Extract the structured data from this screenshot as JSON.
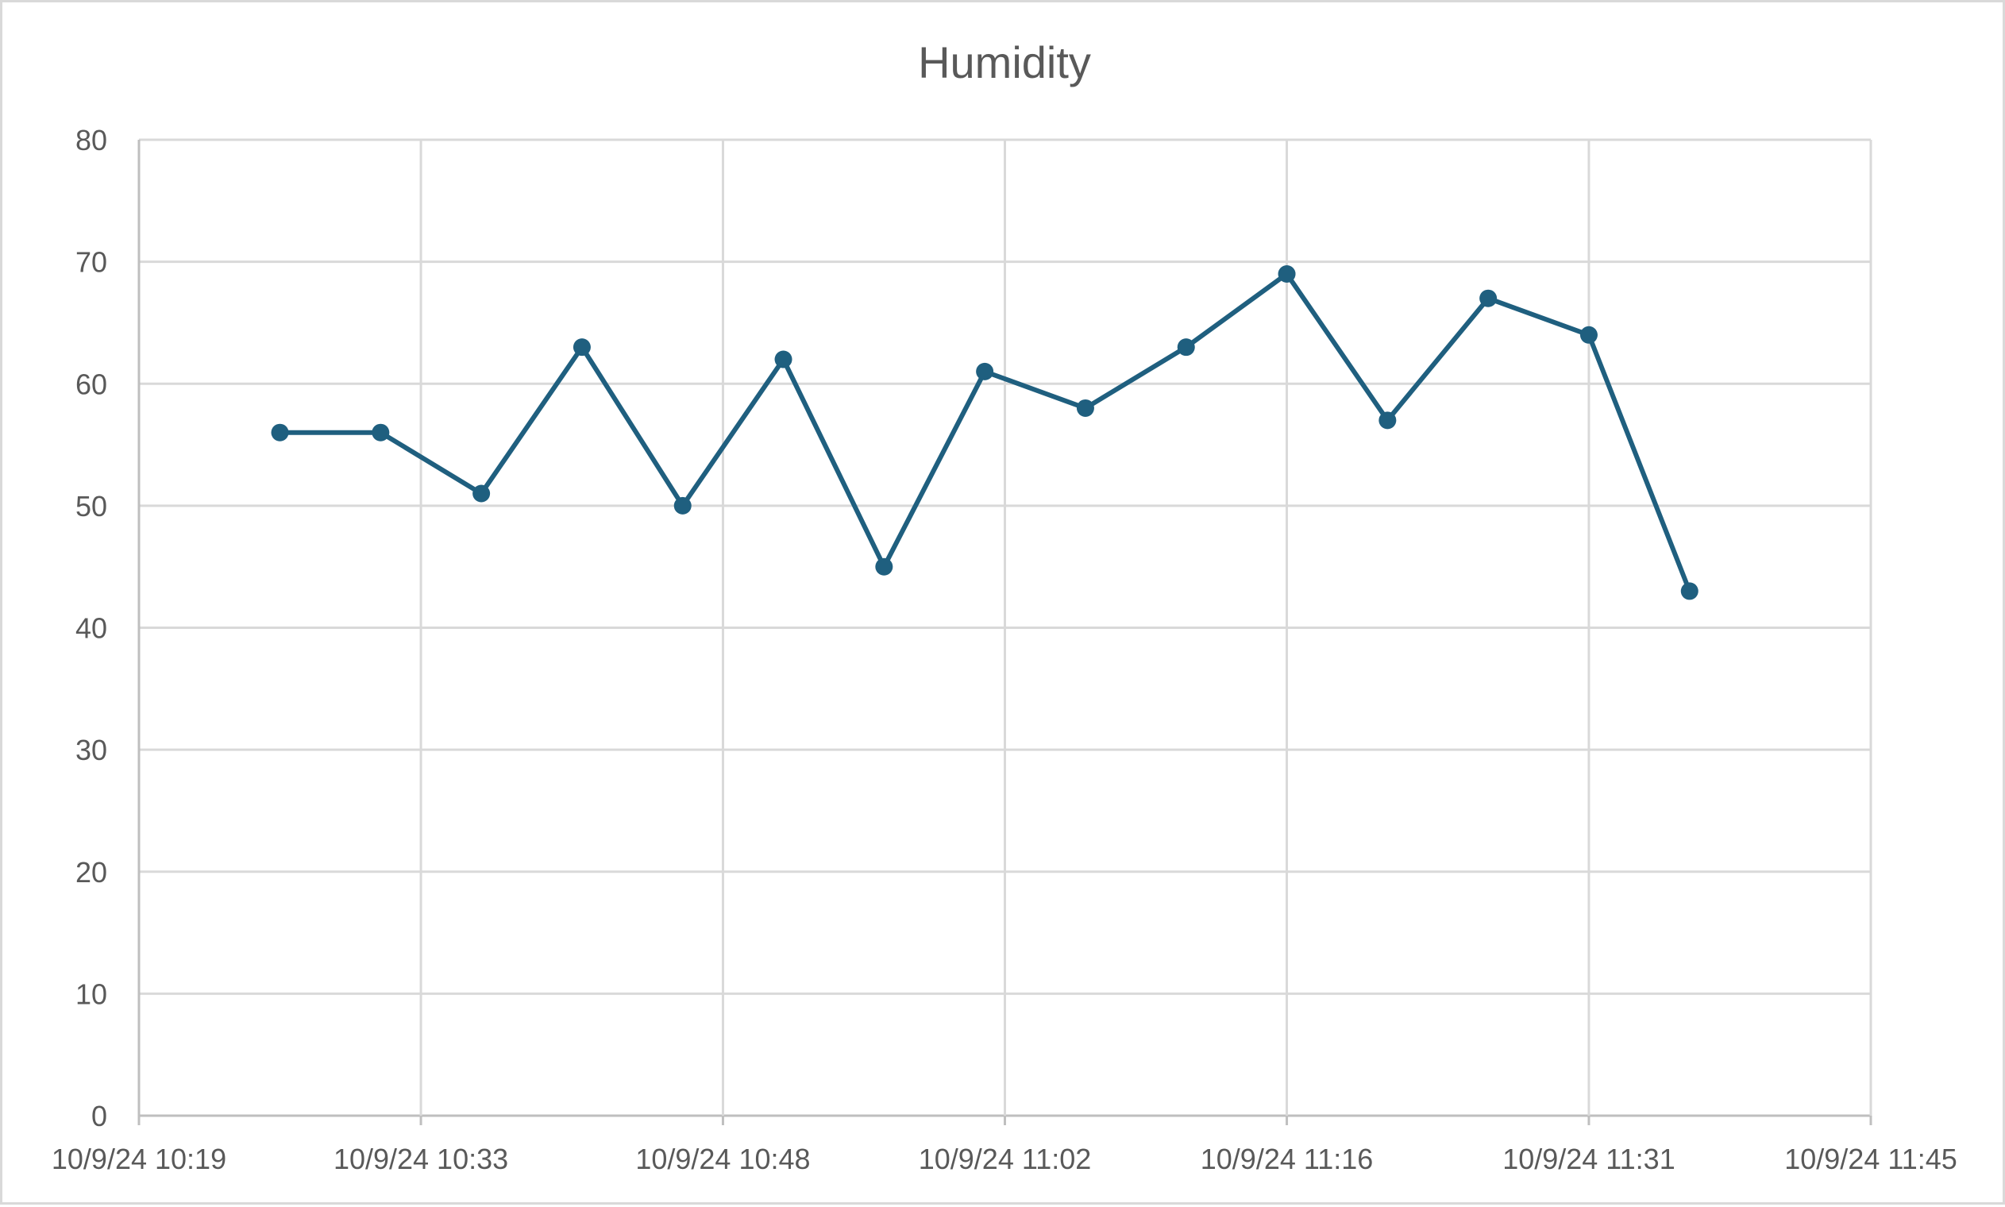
{
  "chart_data": {
    "type": "line",
    "title": "Humidity",
    "xlabel": "",
    "ylabel": "",
    "ylim": [
      0,
      80
    ],
    "y_ticks": [
      0,
      10,
      20,
      30,
      40,
      50,
      60,
      70,
      80
    ],
    "x_ticks": [
      "10/9/24 10:19",
      "10/9/24 10:33",
      "10/9/24 10:48",
      "10/9/24 11:02",
      "10/9/24 11:16",
      "10/9/24 11:31",
      "10/9/24 11:45"
    ],
    "xlim": [
      "10/9/24 10:19",
      "10/9/24 11:45"
    ],
    "grid": true,
    "legend": "none",
    "series_color": "#1f5f7f",
    "x": [
      "10/9/24 10:26",
      "10/9/24 10:31",
      "10/9/24 10:36",
      "10/9/24 10:41",
      "10/9/24 10:46",
      "10/9/24 10:51",
      "10/9/24 10:56",
      "10/9/24 11:01",
      "10/9/24 11:06",
      "10/9/24 11:11",
      "10/9/24 11:16",
      "10/9/24 11:21",
      "10/9/24 11:26",
      "10/9/24 11:31",
      "10/9/24 11:36"
    ],
    "values": [
      56,
      56,
      51,
      63,
      50,
      62,
      45,
      61,
      58,
      63,
      69,
      57,
      67,
      64,
      43
    ]
  }
}
